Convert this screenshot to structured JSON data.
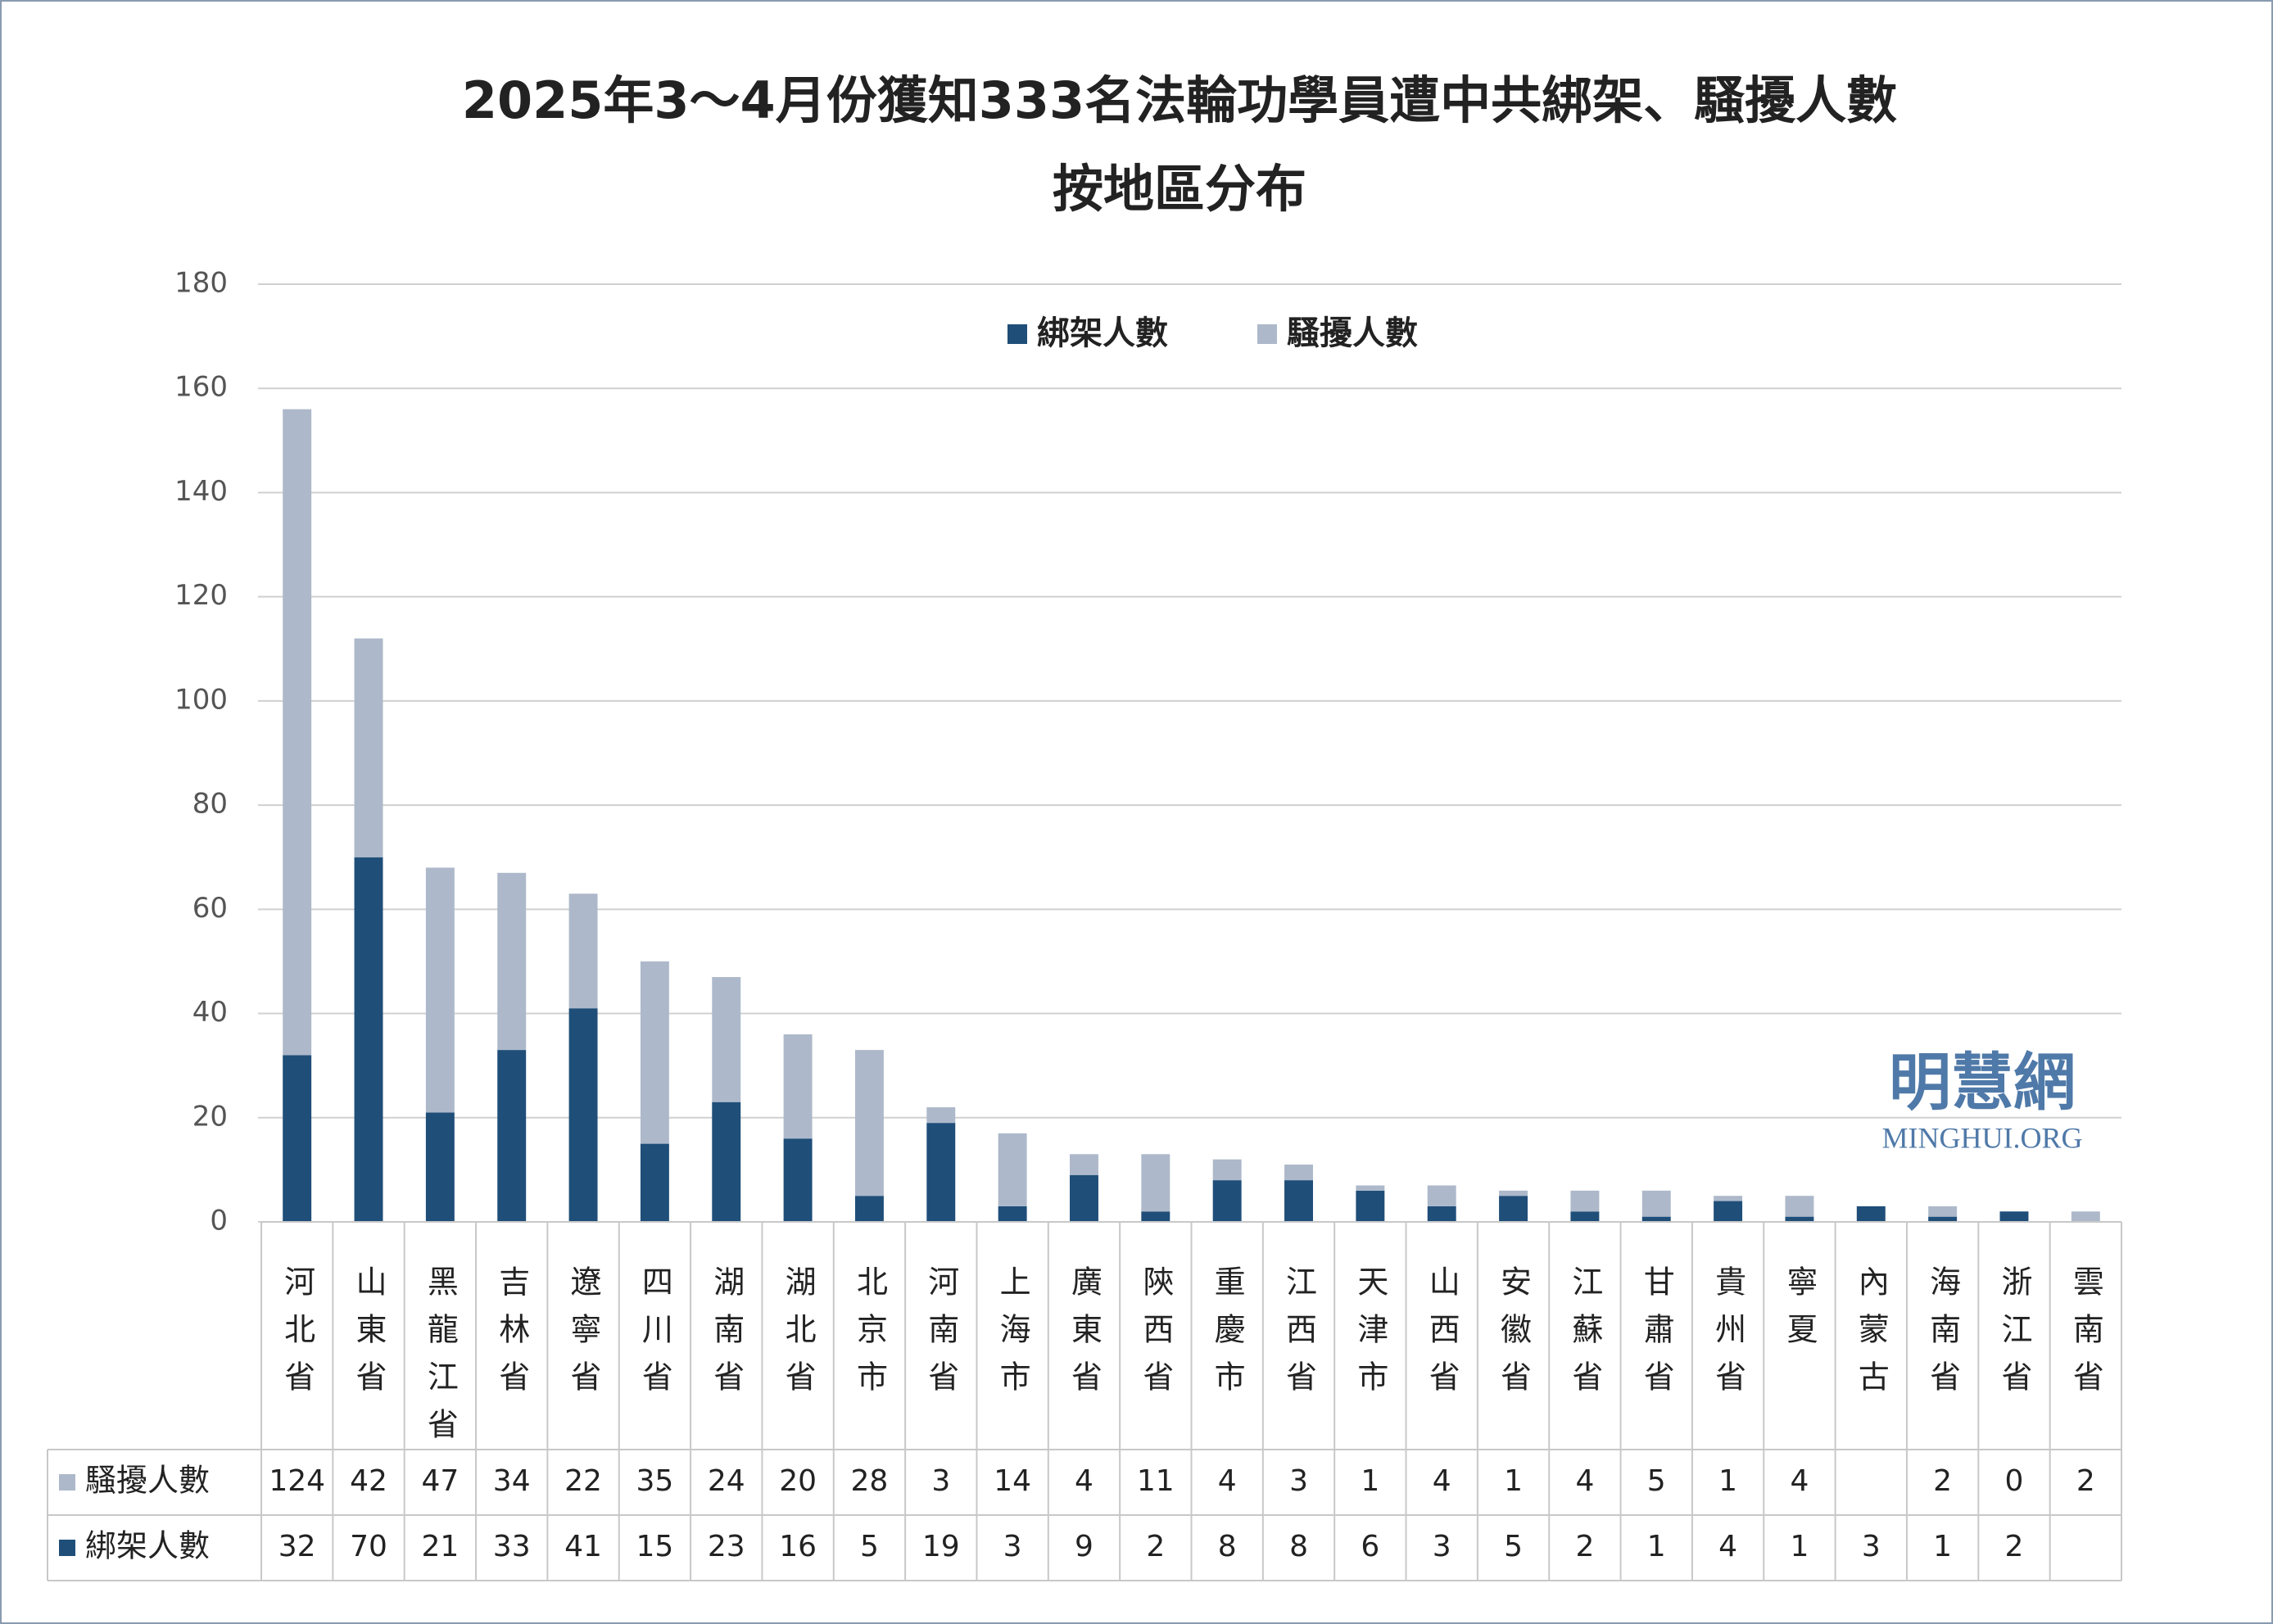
{
  "chart_data": {
    "type": "stacked_bar",
    "title": [
      "2025年3～4月份獲知333名法輪功學員遭中共綁架、騷擾人數",
      "按地區分布"
    ],
    "categories": [
      "河北省",
      "山東省",
      "黑龍江省",
      "吉林省",
      "遼寧省",
      "四川省",
      "湖南省",
      "湖北省",
      "北京市",
      "河南省",
      "上海市",
      "廣東省",
      "陝西省",
      "重慶市",
      "江西省",
      "天津市",
      "山西省",
      "安徽省",
      "江蘇省",
      "甘肅省",
      "貴州省",
      "寧夏",
      "內蒙古",
      "海南省",
      "浙江省",
      "雲南省"
    ],
    "series": [
      {
        "name": "綁架人數",
        "color": "#1f4e79",
        "values": [
          32,
          70,
          21,
          33,
          41,
          15,
          23,
          16,
          5,
          19,
          3,
          9,
          2,
          8,
          8,
          6,
          3,
          5,
          2,
          1,
          4,
          1,
          3,
          1,
          2,
          null
        ]
      },
      {
        "name": "騷擾人數",
        "color": "#adb9ca",
        "values": [
          124,
          42,
          47,
          34,
          22,
          35,
          24,
          20,
          28,
          3,
          14,
          4,
          11,
          4,
          3,
          1,
          4,
          1,
          4,
          5,
          1,
          4,
          null,
          2,
          0,
          2
        ]
      }
    ],
    "ylim": [
      0,
      180
    ],
    "yticks": [
      0,
      20,
      40,
      60,
      80,
      100,
      120,
      140,
      160,
      180
    ],
    "grid": true,
    "legend": "top",
    "watermark": {
      "name": "明慧網",
      "url": "MINGHUI.ORG"
    }
  }
}
